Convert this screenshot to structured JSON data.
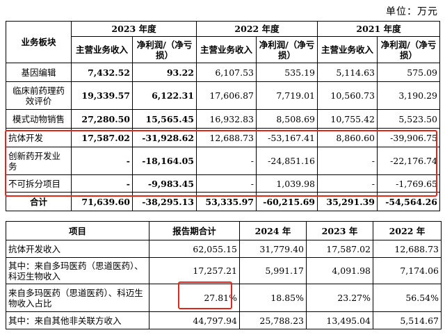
{
  "unit_label": "单位：万元",
  "table1": {
    "header": {
      "segment": "业务板块",
      "years": [
        "2023 年度",
        "2022 年度",
        "2021 年度"
      ],
      "revenue": "主营业务收入",
      "profit": "净利润/（净亏损）"
    },
    "rows": [
      {
        "name": "基因编辑",
        "v": [
          "7,432.52",
          "93.22",
          "6,107.53",
          "535.19",
          "5,114.63",
          "575.09"
        ]
      },
      {
        "name": "临床前药理药效评价",
        "v": [
          "19,339.57",
          "6,122.31",
          "17,606.87",
          "7,719.01",
          "10,560.73",
          "3,190.29"
        ]
      },
      {
        "name": "模式动物销售",
        "v": [
          "27,280.50",
          "15,565.45",
          "16,932.83",
          "8,508.69",
          "10,755.42",
          "5,523.50"
        ]
      },
      {
        "name": "抗体开发",
        "v": [
          "17,587.02",
          "-31,928.62",
          "12,688.73",
          "-53,167.41",
          "8,860.60",
          "-39,906.75"
        ]
      },
      {
        "name": "创新药开发业务",
        "v": [
          "-",
          "-18,164.05",
          "-",
          "-24,851.16",
          "-",
          "-22,176.74"
        ]
      },
      {
        "name": "不可拆分项目",
        "v": [
          "-",
          "-9,983.45",
          "-",
          "1,039.98",
          "-",
          "-1,769.65"
        ]
      }
    ],
    "total": {
      "name": "合计",
      "v": [
        "71,639.60",
        "-38,295.13",
        "53,335.97",
        "-60,215.69",
        "35,291.39",
        "-54,564.26"
      ]
    }
  },
  "table2": {
    "header": [
      "项目",
      "报告期合计",
      "2024 年",
      "2023 年",
      "2022 年"
    ],
    "rows": [
      {
        "name": "抗体开发收入",
        "v": [
          "62,055.15",
          "31,779.40",
          "17,587.02",
          "12,688.73"
        ]
      },
      {
        "name": "其中：来自多玛医药（思道医药）、科迈生物收入",
        "v": [
          "17,257.21",
          "5,991.17",
          "4,091.98",
          "7,174.06"
        ]
      },
      {
        "name": "来自多玛医药（思道医药）、科迈生物收入占比",
        "v": [
          "27.81%",
          "18.85%",
          "23.27%",
          "56.54%"
        ]
      },
      {
        "name": "其中：来自其他非关联方收入",
        "v": [
          "44,797.94",
          "25,788.23",
          "13,495.04",
          "5,514.67"
        ]
      }
    ]
  },
  "highlight_color": "#e1251b"
}
